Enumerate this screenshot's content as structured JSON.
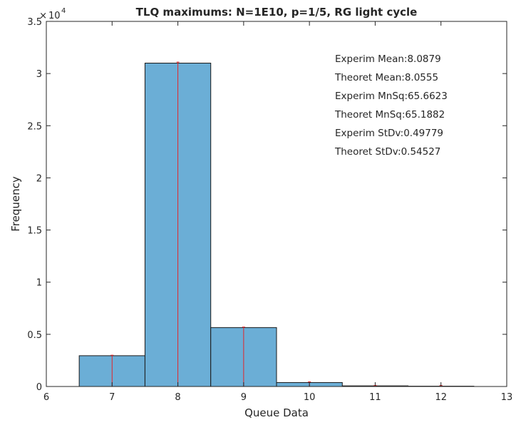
{
  "chart_data": {
    "type": "bar",
    "title": "TLQ maximums: N=1E10, p=1/5, RG light cycle",
    "xlabel": "Queue Data",
    "ylabel": "Frequency",
    "xlim": [
      6,
      13
    ],
    "ylim": [
      0,
      35000
    ],
    "x_ticks": [
      "6",
      "7",
      "8",
      "9",
      "10",
      "11",
      "12",
      "13"
    ],
    "y_ticks": [
      "0",
      "0.5",
      "1",
      "1.5",
      "2",
      "2.5",
      "3",
      "3.5"
    ],
    "y_exponent_base": "10",
    "y_exponent_power": "4",
    "bins": [
      {
        "from": 6.5,
        "to": 7.5,
        "center": 7,
        "value": 2950
      },
      {
        "from": 7.5,
        "to": 8.5,
        "center": 8,
        "value": 31000
      },
      {
        "from": 8.5,
        "to": 9.5,
        "center": 9,
        "value": 5650
      },
      {
        "from": 9.5,
        "to": 10.5,
        "center": 10,
        "value": 380
      },
      {
        "from": 10.5,
        "to": 11.5,
        "center": 11,
        "value": 60
      },
      {
        "from": 11.5,
        "to": 12.5,
        "center": 12,
        "value": 30
      }
    ],
    "theoretical_markers": [
      {
        "x": 7,
        "value": 3000
      },
      {
        "x": 8,
        "value": 31100
      },
      {
        "x": 9,
        "value": 5700
      },
      {
        "x": 10,
        "value": 450
      },
      {
        "x": 11,
        "value": 100
      },
      {
        "x": 12,
        "value": 100
      }
    ],
    "bar_color": "#6baed6",
    "bar_edge_color": "#1a1a1a",
    "marker_color": "#e3262b",
    "grid": false,
    "annotations": [
      "Experim Mean:8.0879",
      "Theoret Mean:8.0555",
      "Experim MnSq:65.6623",
      "Theoret MnSq:65.1882",
      "Experim StDv:0.49779",
      "Theoret StDv:0.54527"
    ]
  }
}
